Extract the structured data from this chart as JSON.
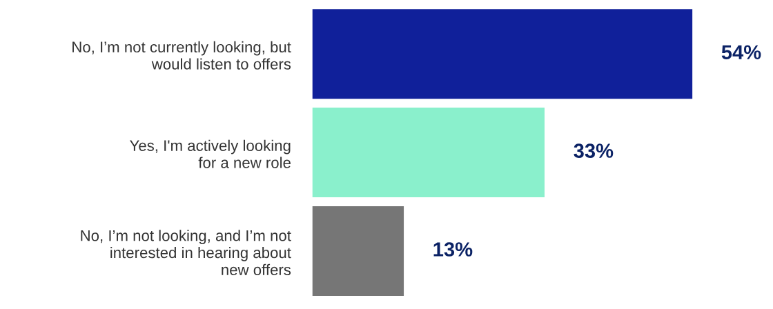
{
  "chart_data": {
    "type": "bar",
    "orientation": "horizontal",
    "categories": [
      "No, I’m not currently looking, but\nwould listen to offers",
      "Yes, I'm actively looking\nfor a new role",
      "No, I’m not looking, and I’m not\ninterested in hearing about\nnew offers"
    ],
    "values": [
      54,
      33,
      13
    ],
    "colors": [
      "#10209a",
      "#8af0cc",
      "#767676"
    ],
    "value_labels": [
      "54%",
      "33%",
      "13%"
    ],
    "grid": false,
    "legend": false
  }
}
